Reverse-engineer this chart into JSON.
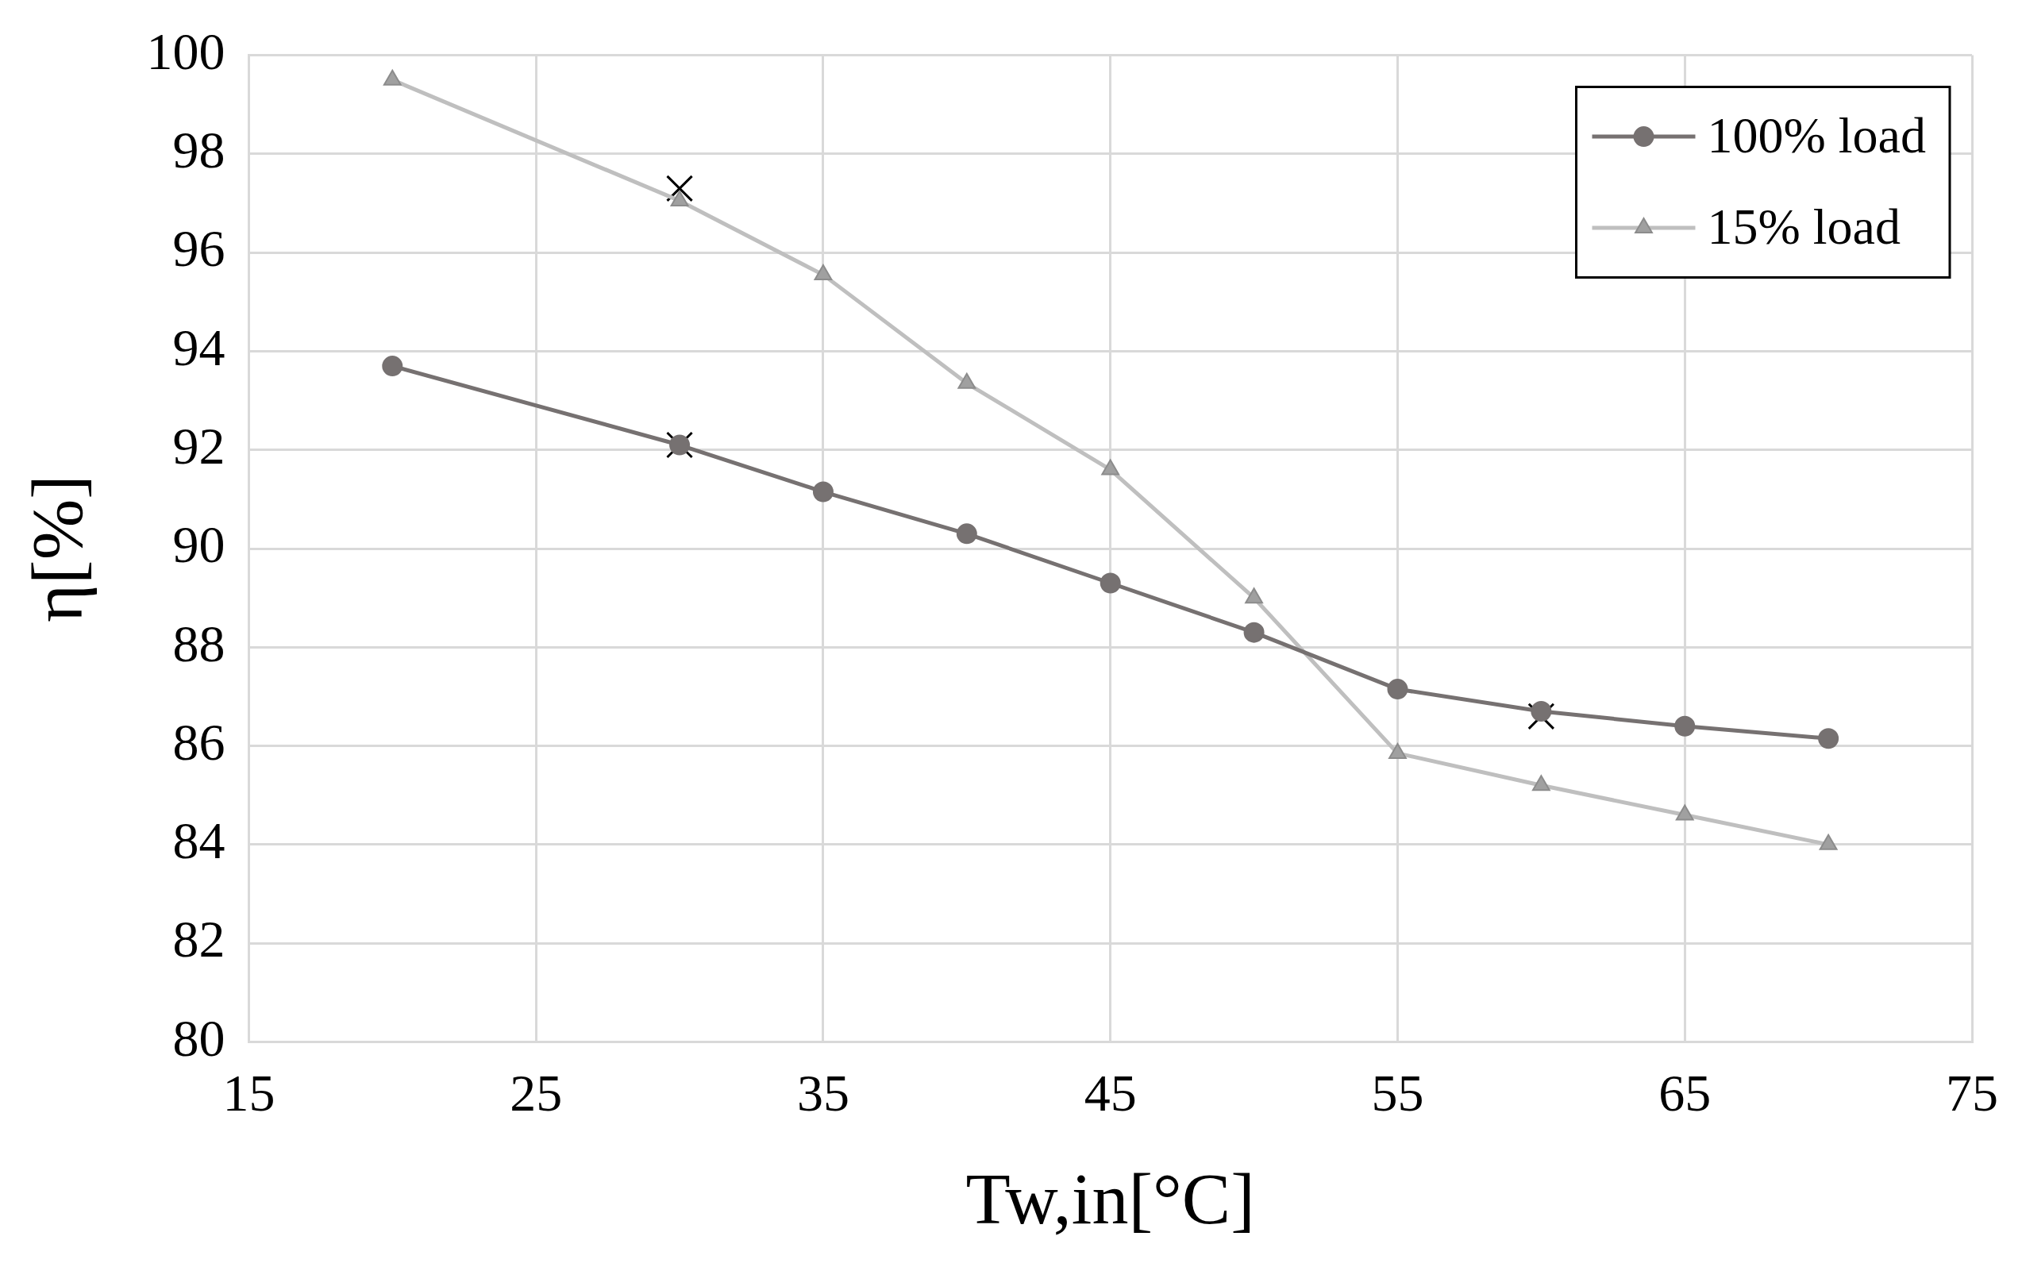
{
  "chart_data": {
    "type": "line",
    "xlabel": "Tw,in[°C]",
    "ylabel": "η[%]",
    "xlim": [
      15,
      75
    ],
    "xticks": [
      15,
      25,
      35,
      45,
      55,
      65,
      75
    ],
    "ylim": [
      80,
      100
    ],
    "yticks": [
      80,
      82,
      84,
      86,
      88,
      90,
      92,
      94,
      96,
      98,
      100
    ],
    "grid": true,
    "legend": "top right",
    "line_style": "solid",
    "series": [
      {
        "name": "100% load",
        "color": "#767171",
        "marker": "circle",
        "x": [
          20,
          30,
          35,
          40,
          45,
          50,
          55,
          60,
          65,
          70
        ],
        "values": [
          93.7,
          92.1,
          91.15,
          90.3,
          89.3,
          88.3,
          87.15,
          86.7,
          86.4,
          86.15
        ]
      },
      {
        "name": "15% load",
        "color": "#bfbfbf",
        "marker": "triangle",
        "x": [
          20,
          30,
          35,
          40,
          45,
          50,
          55,
          60,
          65,
          70
        ],
        "values": [
          99.5,
          97.05,
          95.55,
          93.35,
          91.6,
          89.0,
          85.85,
          85.2,
          84.6,
          84.0
        ]
      },
      {
        "type": "scatter",
        "color": "#000000",
        "marker": "cross",
        "x": [
          30,
          30,
          60
        ],
        "values": [
          97.3,
          92.1,
          86.6
        ]
      }
    ]
  }
}
